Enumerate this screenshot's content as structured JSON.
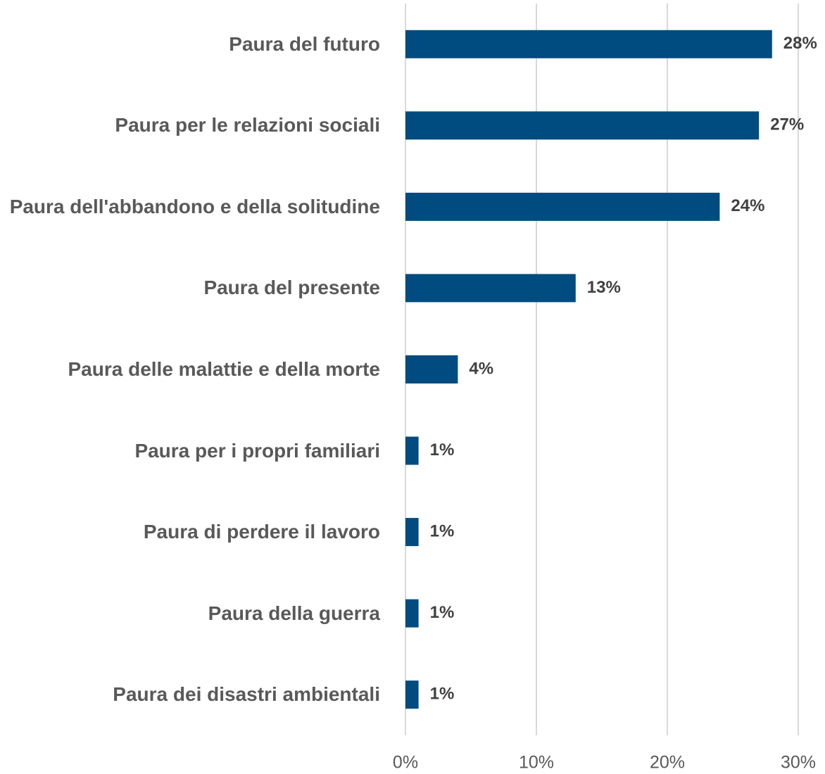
{
  "chart_data": {
    "type": "bar",
    "orientation": "horizontal",
    "categories": [
      "Paura del futuro",
      "Paura per le relazioni sociali",
      "Paura dell'abbandono e della solitudine",
      "Paura del presente",
      "Paura delle malattie e della morte",
      "Paura per i propri familiari",
      "Paura di perdere il lavoro",
      "Paura della guerra",
      "Paura dei disastri ambientali"
    ],
    "values": [
      28,
      27,
      24,
      13,
      4,
      1,
      1,
      1,
      1
    ],
    "value_labels": [
      "28%",
      "27%",
      "24%",
      "13%",
      "4%",
      "1%",
      "1%",
      "1%",
      "1%"
    ],
    "color": "#004b7f",
    "xlim": [
      0,
      30
    ],
    "xticks": [
      {
        "value": 0,
        "label": "0%"
      },
      {
        "value": 10,
        "label": "10%"
      },
      {
        "value": 20,
        "label": "20%"
      },
      {
        "value": 30,
        "label": "30%"
      }
    ],
    "grid": true
  }
}
